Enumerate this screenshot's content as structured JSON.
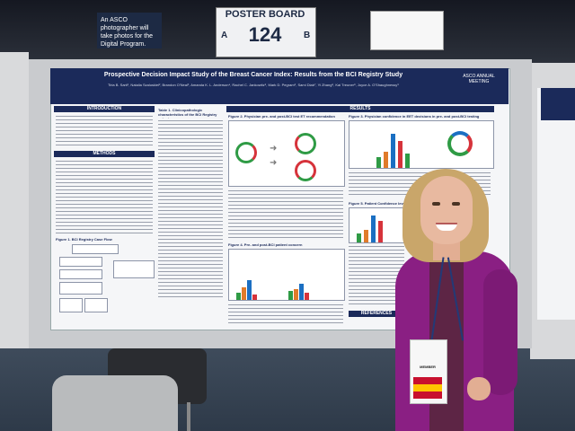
{
  "scene": {
    "description_colors": {
      "poster_navy": "#1b2a5a",
      "jacket_magenta": "#8a1f83",
      "board_gray": "#c9cbce",
      "floor_blue": "#3f4c5c"
    }
  },
  "signs": {
    "photographer": "An ASCO photographer will take photos for the Digital Program.",
    "board_label": "POSTER BOARD",
    "board_number": "124",
    "left_letter": "A",
    "right_letter": "B"
  },
  "poster": {
    "title": "Prospective Decision Impact Study of the Breast Cancer Index: Results from the BCI Registry Study",
    "authors": "Tiria B. Sarti¹, Natalia Szaluskiel², Brandon O'Neal³, Amanda K. L. Anderson⁴, Rachel C. Jankowitz⁵, Mark D. Pegram⁶, Sami Diab⁷, Yi Zhang⁸, Kai Treuner⁸, Joyce A. O'Shaughnessy⁹",
    "logo": "ASCO ANNUAL MEETING",
    "sections": {
      "introduction": "INTRODUCTION",
      "methods": "METHODS",
      "results": "RESULTS",
      "references": "REFERENCES"
    },
    "figure_labels": {
      "fig1": "Figure 1. BCI Registry Case Flow",
      "fig2": "Figure 2. Physician pre- and post-BCI test ET recommendation",
      "fig3": "Figure 3. Physician confidence in EET decisions in pre- and post-BCI testing",
      "fig4": "Figure 4. Pre- and post-BCI patient concern",
      "fig5": "Figure 5. Patient Confidence levels pre- and post-BCI"
    },
    "table1": "Table 1. Clinicopathologic characteristics of the BCI Registry cohort"
  },
  "badge": {
    "ribbon": "MEMBER"
  }
}
